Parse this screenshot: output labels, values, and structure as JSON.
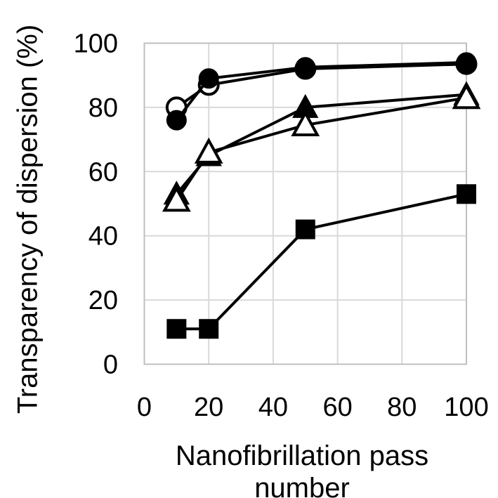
{
  "chart_data": {
    "type": "line",
    "title": "",
    "xlabel": "Nanofibrillation pass number",
    "ylabel": "Transparency of dispersion (%)",
    "xlim": [
      0,
      100
    ],
    "ylim": [
      0,
      100
    ],
    "x_ticks": [
      0,
      20,
      40,
      60,
      80,
      100
    ],
    "y_ticks": [
      0,
      20,
      40,
      60,
      80,
      100
    ],
    "grid": true,
    "legend_position": "none",
    "x": [
      10,
      20,
      50,
      100
    ],
    "series": [
      {
        "name": "open-circle",
        "marker": "circle",
        "fill": "open",
        "values": [
          80,
          87,
          92,
          93.5
        ]
      },
      {
        "name": "filled-circle",
        "marker": "circle",
        "fill": "filled",
        "values": [
          76,
          89,
          92.5,
          94
        ]
      },
      {
        "name": "filled-triangle",
        "marker": "triangle",
        "fill": "filled",
        "values": [
          53,
          65,
          80,
          84
        ]
      },
      {
        "name": "open-triangle",
        "marker": "triangle",
        "fill": "open",
        "values": [
          51,
          66,
          74.5,
          83
        ]
      },
      {
        "name": "filled-square",
        "marker": "square",
        "fill": "filled",
        "values": [
          11,
          11,
          42,
          53
        ]
      }
    ],
    "colors": {
      "line": "#000000",
      "marker_fill": "#000000",
      "marker_open_fill": "#ffffff",
      "grid": "#d9d9d9",
      "frame": "#bfbfbf",
      "background": "#ffffff",
      "text": "#000000"
    }
  }
}
